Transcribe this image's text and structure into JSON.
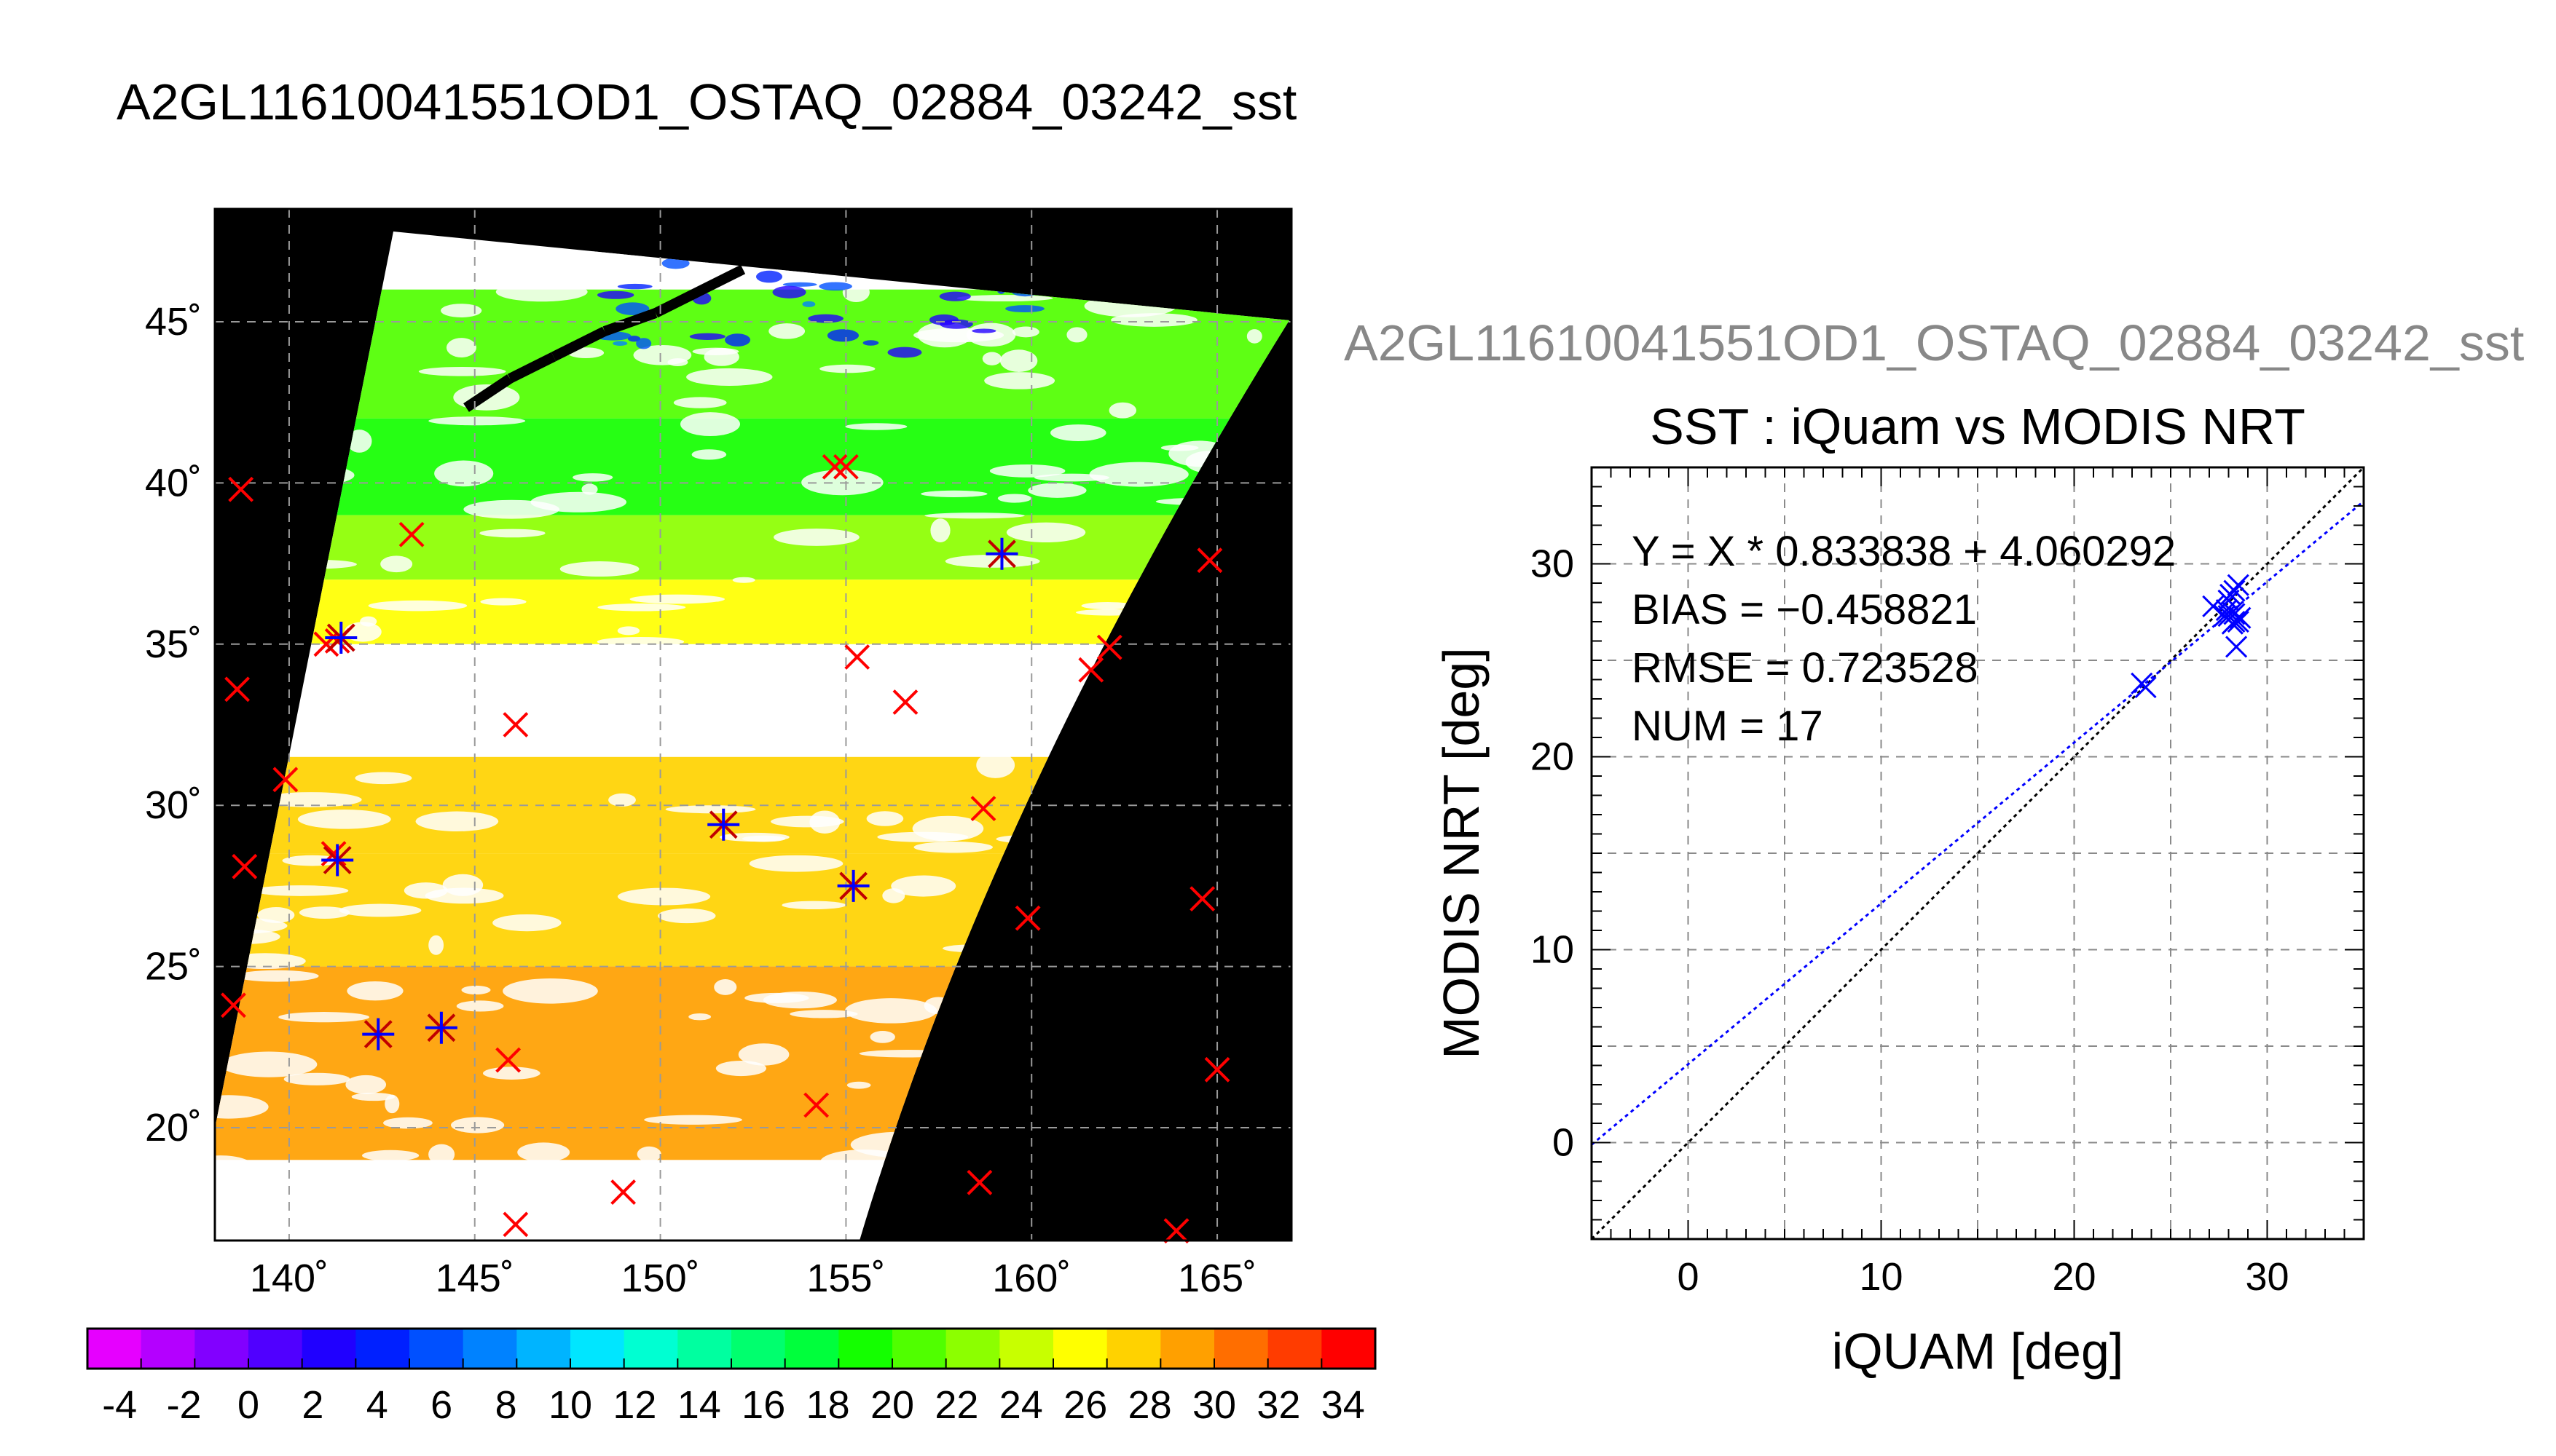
{
  "page": {
    "title": "A2GL11610041551OD1_OSTAQ_02884_03242_sst"
  },
  "chart_data": [
    {
      "type": "heatmap",
      "title": "",
      "description_type": "map",
      "xlabel": "",
      "ylabel": "",
      "xlim": [
        138,
        167
      ],
      "ylim": [
        16.5,
        48.5
      ],
      "x_ticks": [
        140,
        145,
        150,
        155,
        160,
        165
      ],
      "x_tick_labels": [
        "140˚",
        "145˚",
        "150˚",
        "155˚",
        "160˚",
        "165˚"
      ],
      "y_ticks": [
        20,
        25,
        30,
        35,
        40,
        45
      ],
      "y_tick_labels": [
        "20˚",
        "25˚",
        "30˚",
        "35˚",
        "40˚",
        "45˚"
      ],
      "grid": true,
      "background": "#000000",
      "colorbar": {
        "min": -5,
        "max": 35,
        "step": 2,
        "tick_labels": [
          "-4",
          "-2",
          "0",
          "2",
          "4",
          "6",
          "8",
          "10",
          "12",
          "14",
          "16",
          "18",
          "20",
          "22",
          "24",
          "26",
          "28",
          "30",
          "32",
          "34"
        ],
        "colors": [
          "#e600ff",
          "#b400ff",
          "#8200ff",
          "#5000ff",
          "#2000ff",
          "#0020ff",
          "#0050ff",
          "#0082ff",
          "#00b4ff",
          "#00e6ff",
          "#00ffd2",
          "#00ffa0",
          "#00ff6e",
          "#00ff3c",
          "#14ff00",
          "#50ff00",
          "#8cff00",
          "#c8ff00",
          "#ffff00",
          "#ffd200",
          "#ffa000",
          "#ff6e00",
          "#ff3c00",
          "#ff0000"
        ]
      },
      "sst_bands": [
        {
          "lat_min": 42.0,
          "lat_max": 46.0,
          "value": 20
        },
        {
          "lat_min": 39.0,
          "lat_max": 42.0,
          "value": 19
        },
        {
          "lat_min": 37.0,
          "lat_max": 39.0,
          "value": 23
        },
        {
          "lat_min": 35.0,
          "lat_max": 37.0,
          "value": 25
        },
        {
          "lat_min": 31.5,
          "lat_max": 35.0,
          "value": null
        },
        {
          "lat_min": 28.5,
          "lat_max": 31.5,
          "value": 28
        },
        {
          "lat_min": 25.0,
          "lat_max": 28.5,
          "value": 28
        },
        {
          "lat_min": 19.0,
          "lat_max": 25.0,
          "value": 29
        }
      ],
      "markers_red": [
        {
          "lon": 138.7,
          "lat": 39.8
        },
        {
          "lon": 143.3,
          "lat": 38.4
        },
        {
          "lon": 154.7,
          "lat": 40.5
        },
        {
          "lon": 155.0,
          "lat": 40.5
        },
        {
          "lon": 141.0,
          "lat": 35.0
        },
        {
          "lon": 141.3,
          "lat": 35.1
        },
        {
          "lon": 138.6,
          "lat": 33.6
        },
        {
          "lon": 146.1,
          "lat": 32.5
        },
        {
          "lon": 155.3,
          "lat": 34.6
        },
        {
          "lon": 156.6,
          "lat": 33.2
        },
        {
          "lon": 161.6,
          "lat": 34.2
        },
        {
          "lon": 162.1,
          "lat": 34.9
        },
        {
          "lon": 164.8,
          "lat": 37.6
        },
        {
          "lon": 139.9,
          "lat": 30.8
        },
        {
          "lon": 158.7,
          "lat": 29.9
        },
        {
          "lon": 138.8,
          "lat": 28.1
        },
        {
          "lon": 141.2,
          "lat": 28.5
        },
        {
          "lon": 164.6,
          "lat": 27.1
        },
        {
          "lon": 159.9,
          "lat": 26.5
        },
        {
          "lon": 138.5,
          "lat": 23.8
        },
        {
          "lon": 145.9,
          "lat": 22.1
        },
        {
          "lon": 154.2,
          "lat": 20.7
        },
        {
          "lon": 165.0,
          "lat": 21.8
        },
        {
          "lon": 149.0,
          "lat": 18.0
        },
        {
          "lon": 158.6,
          "lat": 18.3
        },
        {
          "lon": 146.1,
          "lat": 17.0
        },
        {
          "lon": 163.9,
          "lat": 16.8
        }
      ],
      "markers_match": [
        {
          "lon": 141.4,
          "lat": 35.2
        },
        {
          "lon": 159.2,
          "lat": 37.8
        },
        {
          "lon": 151.7,
          "lat": 29.4
        },
        {
          "lon": 141.3,
          "lat": 28.3
        },
        {
          "lon": 155.2,
          "lat": 27.5
        },
        {
          "lon": 142.4,
          "lat": 22.9
        },
        {
          "lon": 144.1,
          "lat": 23.1
        }
      ]
    },
    {
      "type": "scatter",
      "title": "SST : iQuam vs MODIS NRT",
      "file_label": "A2GL11610041551OD1_OSTAQ_02884_03242_sst",
      "xlabel": "iQUAM [deg]",
      "ylabel": "MODIS NRT [deg]",
      "xlim": [
        -5,
        35
      ],
      "ylim": [
        -5,
        35
      ],
      "x_ticks": [
        0,
        10,
        20,
        30
      ],
      "y_ticks": [
        0,
        10,
        20,
        30
      ],
      "grid": true,
      "stats": [
        "Y = X * 0.833838 + 4.060292",
        "BIAS = −0.458821",
        "RMSE = 0.723528",
        "NUM = 17"
      ],
      "fit": {
        "slope": 0.833838,
        "intercept": 4.060292
      },
      "series": [
        {
          "marker": "x",
          "color": "#0000ff",
          "x": [
            23.5,
            23.7,
            27.2,
            27.8,
            28.0,
            28.1,
            28.3,
            28.2,
            28.6,
            28.3,
            28.5,
            28.2,
            27.9,
            28.5,
            28.4,
            28.0,
            28.3
          ],
          "y": [
            23.8,
            23.6,
            27.8,
            27.3,
            28.1,
            28.4,
            27.0,
            27.5,
            27.2,
            28.6,
            28.9,
            26.9,
            27.6,
            27.0,
            25.7,
            27.3,
            27.4
          ]
        }
      ],
      "lines": [
        {
          "kind": "identity",
          "color": "#000000"
        },
        {
          "kind": "fit",
          "color": "#0000ff"
        }
      ]
    }
  ]
}
